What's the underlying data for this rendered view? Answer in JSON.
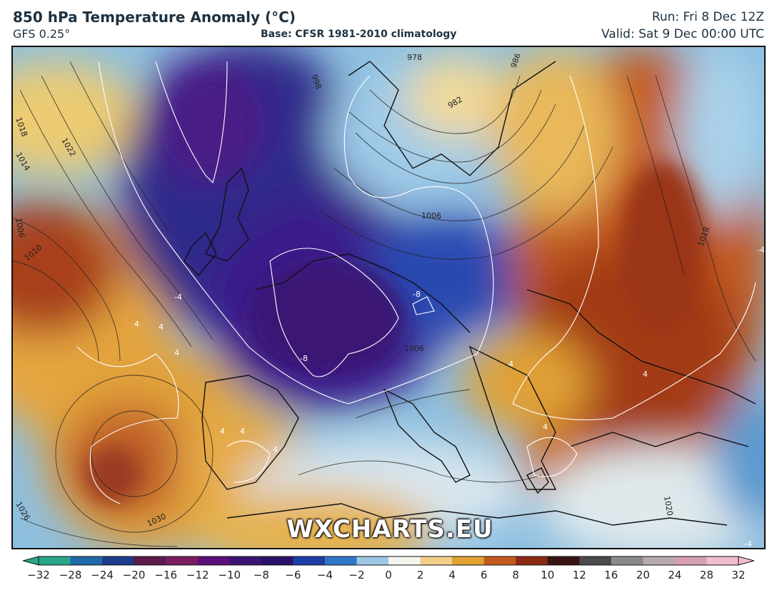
{
  "header": {
    "title": "850 hPa Temperature Anomaly (°C)",
    "model": "GFS 0.25°",
    "base": "Base: CFSR 1981-2010 climatology",
    "run": "Run: Fri 8 Dec 12Z",
    "valid": "Valid: Sat 9 Dec 00:00 UTC"
  },
  "watermark": "WXCHARTS.EU",
  "colorbar": {
    "ticks": [
      "−32",
      "−28",
      "−24",
      "−20",
      "−16",
      "−12",
      "−10",
      "−8",
      "−6",
      "−4",
      "−2",
      "0",
      "2",
      "4",
      "6",
      "8",
      "10",
      "12",
      "16",
      "20",
      "24",
      "28",
      "32"
    ],
    "colors": [
      "#2aa68a",
      "#1f6aa8",
      "#1e3b8a",
      "#5a1a4a",
      "#7a1f5f",
      "#5c0f7a",
      "#3c1470",
      "#2c1168",
      "#1e3ea5",
      "#2f78c8",
      "#9cc8e6",
      "#f4f4ef",
      "#f3d08a",
      "#e0a332",
      "#c45a1d",
      "#8a2a14",
      "#3a1410",
      "#4a4a4a",
      "#8a8a8a",
      "#b7a9b0",
      "#d69fb2",
      "#f2bccd"
    ]
  },
  "map": {
    "isobar_labels": [
      "978",
      "986",
      "982",
      "998",
      "1006",
      "1018",
      "1022",
      "1014",
      "1006",
      "1010",
      "1006",
      "1018",
      "1030",
      "1026",
      "1020"
    ],
    "anomaly_labels": [
      "-8",
      "-8",
      "-4",
      "4",
      "4",
      "4",
      "4",
      "4",
      "4",
      "4",
      "4",
      "4",
      "-4",
      "-4"
    ]
  }
}
